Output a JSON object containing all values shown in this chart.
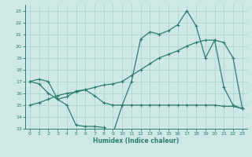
{
  "xlabel": "Humidex (Indice chaleur)",
  "xlim": [
    -0.5,
    23.5
  ],
  "ylim": [
    13,
    23.5
  ],
  "yticks": [
    13,
    14,
    15,
    16,
    17,
    18,
    19,
    20,
    21,
    22,
    23
  ],
  "xticks": [
    0,
    1,
    2,
    3,
    4,
    5,
    6,
    7,
    8,
    9,
    10,
    11,
    12,
    13,
    14,
    15,
    16,
    17,
    18,
    19,
    20,
    21,
    22,
    23
  ],
  "bg_color": "#cde8e5",
  "grid_color": "#b0d4d0",
  "line_color": "#2e7d72",
  "line1_x": [
    0,
    1,
    2,
    3,
    4,
    5,
    6,
    7,
    8,
    9,
    10,
    11,
    12,
    13,
    14,
    15,
    16,
    17,
    18,
    19,
    20,
    21,
    22,
    23
  ],
  "line1_y": [
    17.0,
    17.2,
    17.0,
    15.5,
    15.0,
    13.3,
    13.2,
    13.2,
    13.1,
    12.6,
    15.0,
    17.0,
    20.6,
    21.2,
    21.0,
    21.3,
    21.8,
    23.0,
    21.7,
    19.0,
    20.5,
    16.5,
    15.0,
    14.7
  ],
  "line2_x": [
    0,
    1,
    2,
    3,
    4,
    5,
    6,
    7,
    8,
    9,
    10,
    11,
    12,
    13,
    14,
    15,
    16,
    17,
    18,
    19,
    20,
    21,
    22,
    23
  ],
  "line2_y": [
    17.0,
    16.8,
    16.0,
    15.5,
    15.7,
    16.2,
    16.3,
    15.8,
    15.2,
    15.0,
    15.0,
    15.0,
    15.0,
    15.0,
    15.0,
    15.0,
    15.0,
    15.0,
    15.0,
    15.0,
    15.0,
    14.9,
    14.9,
    14.7
  ],
  "line3_x": [
    0,
    1,
    2,
    3,
    4,
    5,
    6,
    7,
    8,
    9,
    10,
    11,
    12,
    13,
    14,
    15,
    16,
    17,
    18,
    19,
    20,
    21,
    22,
    23
  ],
  "line3_y": [
    15.0,
    15.2,
    15.5,
    15.8,
    16.0,
    16.1,
    16.3,
    16.5,
    16.7,
    16.8,
    17.0,
    17.5,
    18.0,
    18.5,
    19.0,
    19.3,
    19.6,
    20.0,
    20.3,
    20.5,
    20.5,
    20.3,
    19.0,
    14.7
  ]
}
